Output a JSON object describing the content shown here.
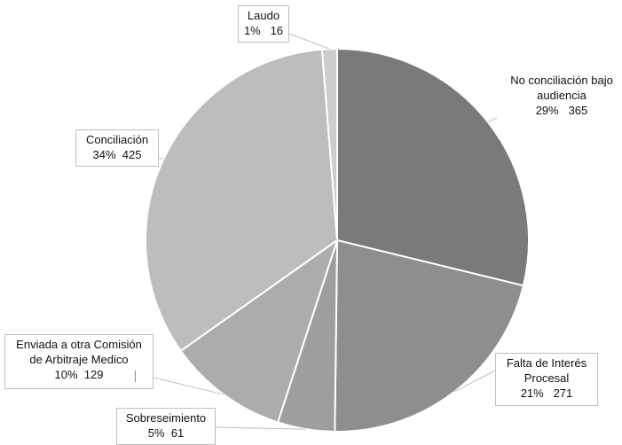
{
  "chart_data": {
    "type": "pie",
    "slices": [
      {
        "label": "No conciliación bajo\naudiencia",
        "percent_label": "29%",
        "value": 365,
        "color": "#7a7a7a"
      },
      {
        "label": "Falta de Interés\nProcesal",
        "percent_label": "21%",
        "value": 271,
        "color": "#8e8e8e"
      },
      {
        "label": "Sobreseimiento",
        "percent_label": "5%",
        "value": 61,
        "color": "#9e9e9e"
      },
      {
        "label": "Enviada a otra Comisión\nde Arbitraje Medico",
        "percent_label": "10%",
        "value": 129,
        "color": "#acacac"
      },
      {
        "label": "Conciliación",
        "percent_label": "34%",
        "value": 425,
        "color": "#bdbdbd"
      },
      {
        "label": "Laudo",
        "percent_label": "1%",
        "value": 16,
        "color": "#cdcdcd"
      }
    ],
    "start_angle_deg": 0,
    "direction": "clockwise",
    "border_color": "#ffffff"
  }
}
